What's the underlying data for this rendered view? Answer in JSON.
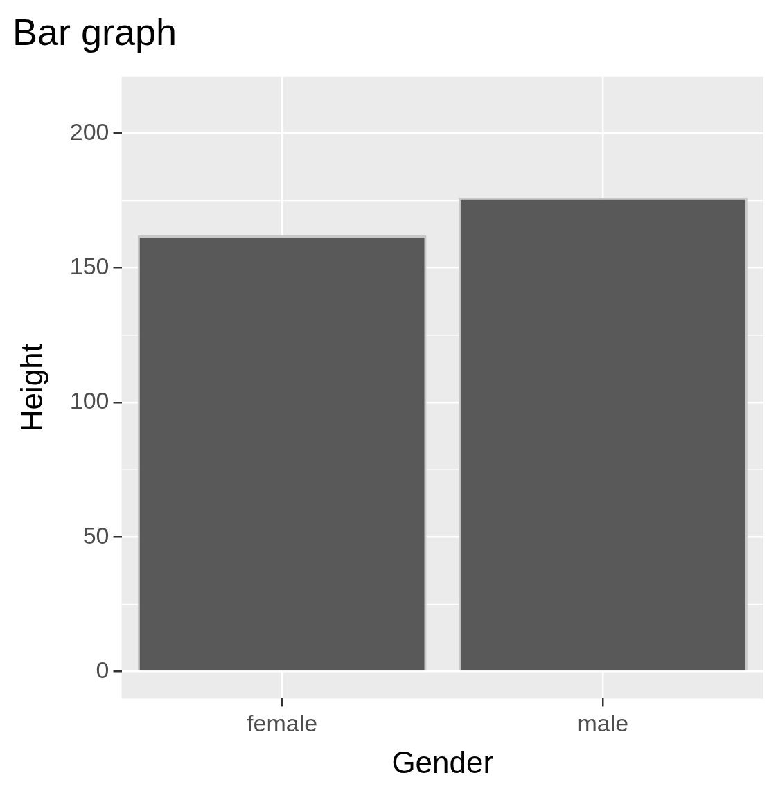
{
  "chart_data": {
    "type": "bar",
    "title": "Bar graph",
    "xlabel": "Gender",
    "ylabel": "Height",
    "categories": [
      "female",
      "male"
    ],
    "values": [
      162,
      176
    ],
    "color": "#595959",
    "ylim": [
      -10,
      221
    ],
    "yticks": [
      0,
      50,
      100,
      150,
      200
    ],
    "grid": true
  }
}
